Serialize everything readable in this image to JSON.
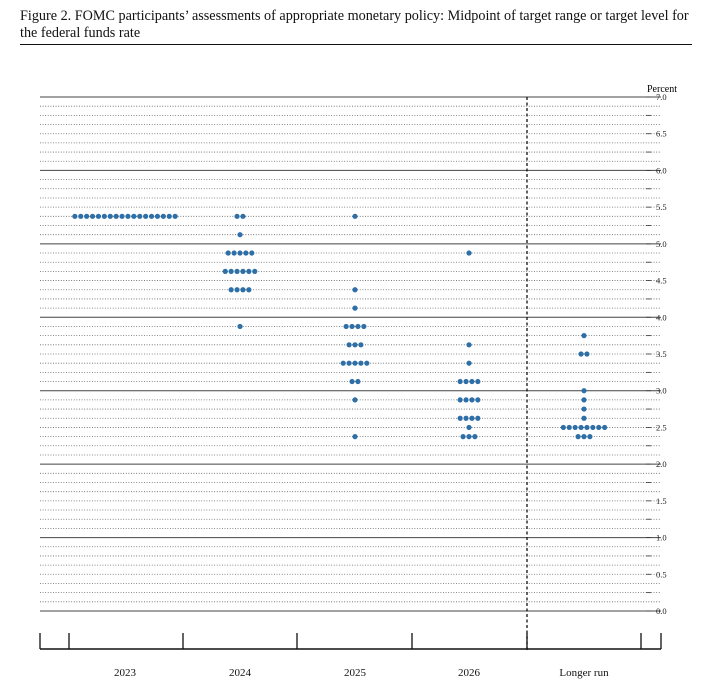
{
  "figure": {
    "title": "Figure 2.  FOMC participants’ assessments of appropriate monetary policy: Midpoint of target range or target level for the federal funds rate"
  },
  "colors": {
    "dot": "#2e6fa7",
    "axis": "#111111",
    "grid": "#444444"
  },
  "chart_data": {
    "type": "scatter",
    "title": "Figure 2.  FOMC participants’ assessments of appropriate monetary policy: Midpoint of target range or target level for the federal funds rate",
    "ylabel": "Percent",
    "xlabel": "",
    "ylim": [
      0,
      7
    ],
    "y_ticks": [
      "0.0",
      "0.5",
      "1.0",
      "1.5",
      "2.0",
      "2.5",
      "3.0",
      "3.5",
      "4.0",
      "4.5",
      "5.0",
      "5.5",
      "6.0",
      "6.5",
      "7.0"
    ],
    "categories": [
      "2023",
      "2024",
      "2025",
      "2026",
      "Longer run"
    ],
    "gridlines": "solid at each whole percent, dotted at each 0.125",
    "divider": "dashed vertical line before Longer run",
    "dots": [
      {
        "category": "2023",
        "counts": [
          {
            "value": 5.375,
            "count": 18
          }
        ]
      },
      {
        "category": "2024",
        "counts": [
          {
            "value": 5.375,
            "count": 2
          },
          {
            "value": 5.125,
            "count": 1
          },
          {
            "value": 4.875,
            "count": 5
          },
          {
            "value": 4.625,
            "count": 6
          },
          {
            "value": 4.375,
            "count": 4
          },
          {
            "value": 3.875,
            "count": 1
          }
        ]
      },
      {
        "category": "2025",
        "counts": [
          {
            "value": 5.375,
            "count": 1
          },
          {
            "value": 4.375,
            "count": 1
          },
          {
            "value": 4.125,
            "count": 1
          },
          {
            "value": 3.875,
            "count": 4
          },
          {
            "value": 3.625,
            "count": 3
          },
          {
            "value": 3.375,
            "count": 5
          },
          {
            "value": 3.125,
            "count": 2
          },
          {
            "value": 2.875,
            "count": 1
          },
          {
            "value": 2.375,
            "count": 1
          }
        ]
      },
      {
        "category": "2026",
        "counts": [
          {
            "value": 4.875,
            "count": 1
          },
          {
            "value": 3.625,
            "count": 1
          },
          {
            "value": 3.375,
            "count": 1
          },
          {
            "value": 3.125,
            "count": 4
          },
          {
            "value": 2.875,
            "count": 4
          },
          {
            "value": 2.625,
            "count": 4
          },
          {
            "value": 2.5,
            "count": 1
          },
          {
            "value": 2.375,
            "count": 3
          }
        ]
      },
      {
        "category": "Longer run",
        "counts": [
          {
            "value": 3.75,
            "count": 1
          },
          {
            "value": 3.5,
            "count": 2
          },
          {
            "value": 3.0,
            "count": 1
          },
          {
            "value": 2.875,
            "count": 1
          },
          {
            "value": 2.75,
            "count": 1
          },
          {
            "value": 2.625,
            "count": 1
          },
          {
            "value": 2.5,
            "count": 8
          },
          {
            "value": 2.375,
            "count": 3
          }
        ]
      }
    ]
  }
}
